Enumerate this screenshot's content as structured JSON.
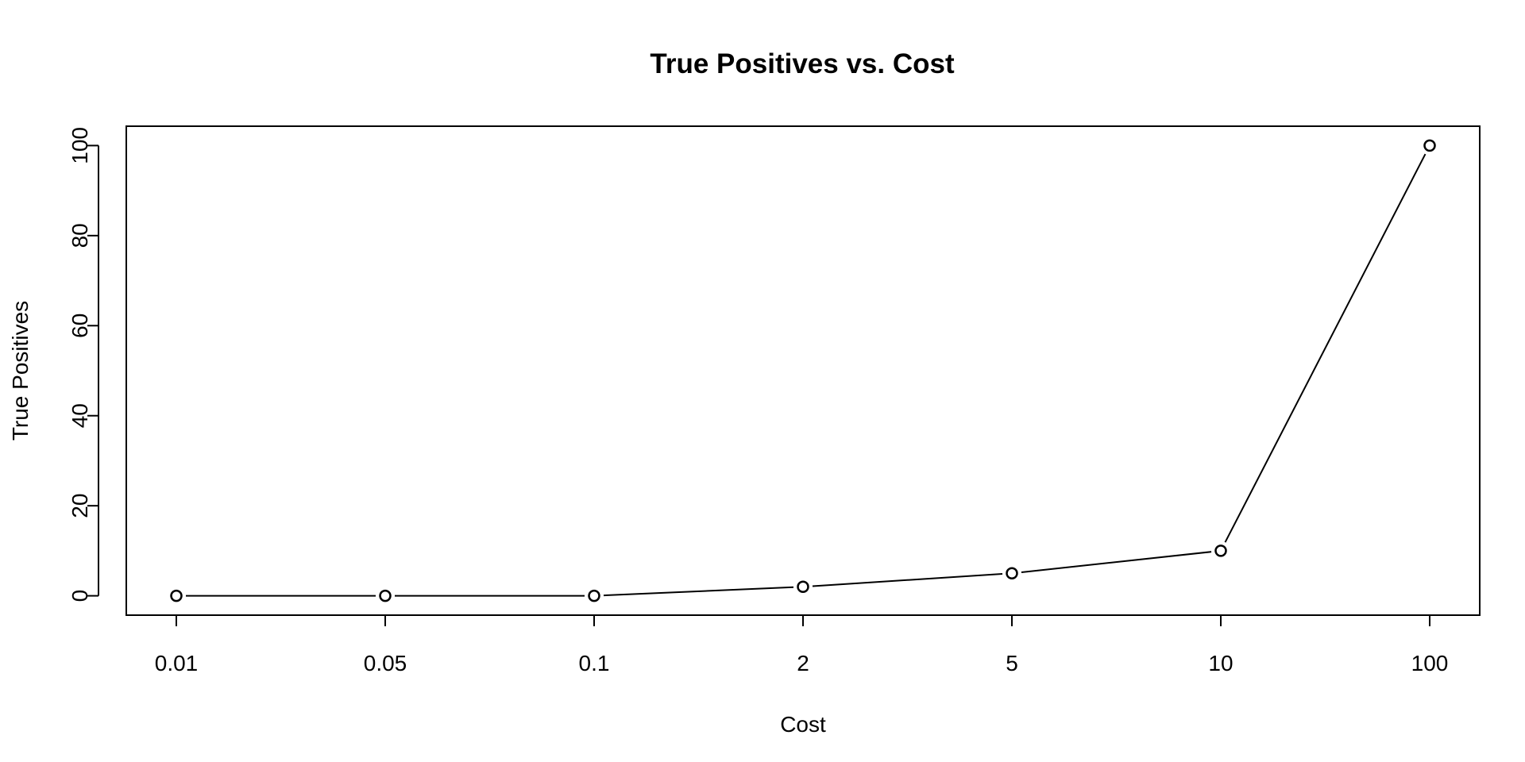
{
  "chart_data": {
    "type": "line",
    "title": "True Positives vs. Cost",
    "xlabel": "Cost",
    "ylabel": "True Positives",
    "categories": [
      "0.01",
      "0.05",
      "0.1",
      "2",
      "5",
      "10",
      "100"
    ],
    "series": [
      {
        "values": [
          0,
          0,
          0,
          2,
          5,
          10,
          100
        ]
      }
    ],
    "ylim": [
      -4.3,
      104.3
    ],
    "yticks": [
      0,
      20,
      40,
      60,
      80,
      100
    ],
    "grid": false,
    "legend": "none",
    "marker": "open-circle",
    "colors": {
      "line": "#000000",
      "marker_fill": "#ffffff",
      "frame": "#000000"
    }
  }
}
